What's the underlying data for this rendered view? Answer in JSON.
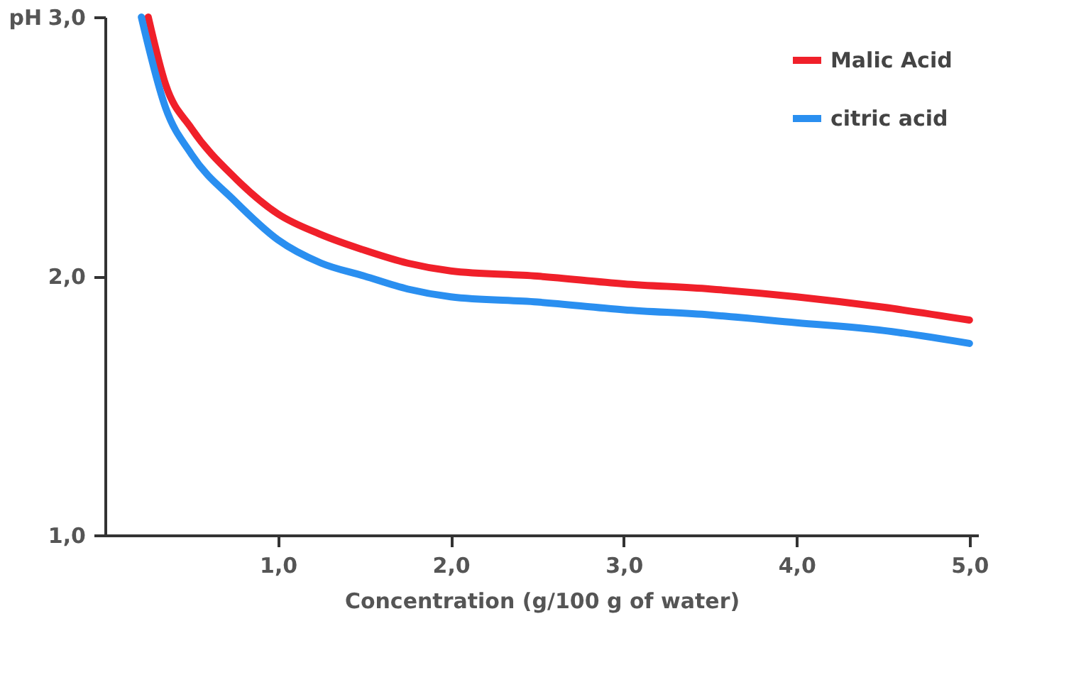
{
  "chart_data": {
    "type": "line",
    "xlabel": "Concentration (g/100 g of water)",
    "ylabel": "pH",
    "series": [
      {
        "name": "Malic Acid",
        "color": "#f0202a",
        "x": [
          0.25,
          0.35,
          0.5,
          0.75,
          1.0,
          1.25,
          1.5,
          1.75,
          2.0,
          2.5,
          3.0,
          3.5,
          4.0,
          4.5,
          5.0
        ],
        "values": [
          3.0,
          2.74,
          2.57,
          2.38,
          2.24,
          2.16,
          2.1,
          2.05,
          2.02,
          2.0,
          1.97,
          1.95,
          1.92,
          1.88,
          1.83
        ]
      },
      {
        "name": "citric acid",
        "color": "#2a8ff0",
        "x": [
          0.21,
          0.35,
          0.5,
          0.75,
          1.0,
          1.25,
          1.5,
          1.75,
          2.0,
          2.5,
          3.0,
          3.5,
          4.0,
          4.5,
          5.0
        ],
        "values": [
          3.0,
          2.65,
          2.47,
          2.29,
          2.14,
          2.05,
          2.0,
          1.95,
          1.92,
          1.9,
          1.87,
          1.85,
          1.82,
          1.79,
          1.74
        ]
      }
    ],
    "xlim": [
      0,
      5.05
    ],
    "ylim": [
      1,
      3
    ],
    "xticks": [
      {
        "value": 1,
        "label": "1,0"
      },
      {
        "value": 2,
        "label": "2,0"
      },
      {
        "value": 3,
        "label": "3,0"
      },
      {
        "value": 4,
        "label": "4,0"
      },
      {
        "value": 5,
        "label": "5,0"
      }
    ],
    "yticks": [
      {
        "value": 1,
        "label": "1,0"
      },
      {
        "value": 2,
        "label": "2,0"
      },
      {
        "value": 3,
        "label": "3,0"
      }
    ],
    "grid": false,
    "legend": "top right",
    "marker": "none",
    "line_style": "solid"
  }
}
